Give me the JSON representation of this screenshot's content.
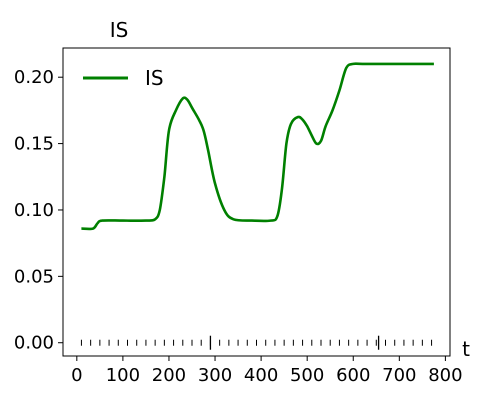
{
  "chart_data": {
    "type": "line",
    "title": "IS",
    "xlabel": "t",
    "ylabel": "",
    "xlim": [
      -30,
      810
    ],
    "ylim": [
      -0.01,
      0.222
    ],
    "xticks": [
      0,
      100,
      200,
      300,
      400,
      500,
      600,
      700,
      800
    ],
    "xtick_labels": [
      "0",
      "100",
      "200",
      "300",
      "400",
      "500",
      "600",
      "700",
      "800"
    ],
    "yticks": [
      0.0,
      0.05,
      0.1,
      0.15,
      0.2
    ],
    "ytick_labels": [
      "0.00",
      "0.05",
      "0.10",
      "0.15",
      "0.20"
    ],
    "grid": false,
    "legend": {
      "position": "upper-left",
      "entries": [
        "IS"
      ]
    },
    "series": [
      {
        "name": "IS",
        "color": "#008000",
        "x": [
          10,
          35,
          45,
          55,
          100,
          150,
          170,
          180,
          190,
          200,
          215,
          230,
          240,
          250,
          265,
          275,
          285,
          300,
          320,
          340,
          380,
          420,
          435,
          445,
          455,
          465,
          480,
          490,
          500,
          510,
          520,
          530,
          540,
          555,
          570,
          585,
          600,
          620,
          700,
          775
        ],
        "values": [
          0.086,
          0.086,
          0.09,
          0.092,
          0.092,
          0.092,
          0.093,
          0.1,
          0.125,
          0.16,
          0.175,
          0.184,
          0.183,
          0.177,
          0.168,
          0.16,
          0.145,
          0.12,
          0.1,
          0.093,
          0.092,
          0.092,
          0.095,
          0.115,
          0.15,
          0.165,
          0.17,
          0.168,
          0.163,
          0.156,
          0.15,
          0.152,
          0.163,
          0.175,
          0.19,
          0.207,
          0.21,
          0.21,
          0.21,
          0.21
        ]
      }
    ],
    "event_marks": {
      "y": 0.0,
      "x": [
        10,
        30,
        50,
        70,
        90,
        110,
        130,
        150,
        170,
        190,
        210,
        230,
        250,
        270,
        290,
        310,
        330,
        350,
        370,
        390,
        410,
        430,
        450,
        470,
        490,
        510,
        530,
        550,
        570,
        590,
        610,
        630,
        650,
        670,
        690,
        710,
        730,
        750,
        770
      ],
      "major": [
        290,
        655
      ]
    }
  }
}
